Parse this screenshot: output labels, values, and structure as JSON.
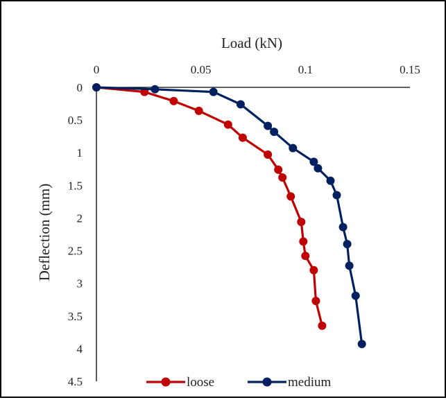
{
  "chart_data": {
    "type": "line",
    "xlabel": "Load (kN)",
    "ylabel": "Deflection (mm)",
    "xlim": [
      0,
      0.15
    ],
    "ylim": [
      0,
      4.5
    ],
    "y_inverted": true,
    "x_axis_position": "top",
    "x_ticks": [
      0,
      0.05,
      0.1,
      0.15
    ],
    "x_tick_labels": [
      "0",
      "0.05",
      "0.1",
      "0.15"
    ],
    "y_ticks": [
      0,
      0.5,
      1,
      1.5,
      2,
      2.5,
      3,
      3.5,
      4,
      4.5
    ],
    "y_tick_labels": [
      "0",
      "0.5",
      "1",
      "1.5",
      "2",
      "2.5",
      "3",
      "3.5",
      "4",
      "4.5"
    ],
    "grid": false,
    "legend_position": "bottom",
    "series": [
      {
        "name": "loose",
        "color": "#c00000",
        "points": [
          [
            0,
            0
          ],
          [
            0.023,
            0.07
          ],
          [
            0.037,
            0.21
          ],
          [
            0.049,
            0.36
          ],
          [
            0.063,
            0.57
          ],
          [
            0.07,
            0.77
          ],
          [
            0.082,
            1.03
          ],
          [
            0.087,
            1.26
          ],
          [
            0.089,
            1.38
          ],
          [
            0.093,
            1.67
          ],
          [
            0.098,
            2.06
          ],
          [
            0.099,
            2.36
          ],
          [
            0.1,
            2.58
          ],
          [
            0.104,
            2.8
          ],
          [
            0.105,
            3.27
          ],
          [
            0.108,
            3.65
          ]
        ]
      },
      {
        "name": "medium",
        "color": "#002060",
        "points": [
          [
            0,
            0
          ],
          [
            0.028,
            0.03
          ],
          [
            0.056,
            0.07
          ],
          [
            0.069,
            0.26
          ],
          [
            0.082,
            0.59
          ],
          [
            0.085,
            0.68
          ],
          [
            0.094,
            0.93
          ],
          [
            0.104,
            1.14
          ],
          [
            0.106,
            1.24
          ],
          [
            0.112,
            1.43
          ],
          [
            0.115,
            1.65
          ],
          [
            0.118,
            2.14
          ],
          [
            0.12,
            2.4
          ],
          [
            0.121,
            2.73
          ],
          [
            0.124,
            3.19
          ],
          [
            0.127,
            3.93
          ]
        ]
      }
    ]
  }
}
